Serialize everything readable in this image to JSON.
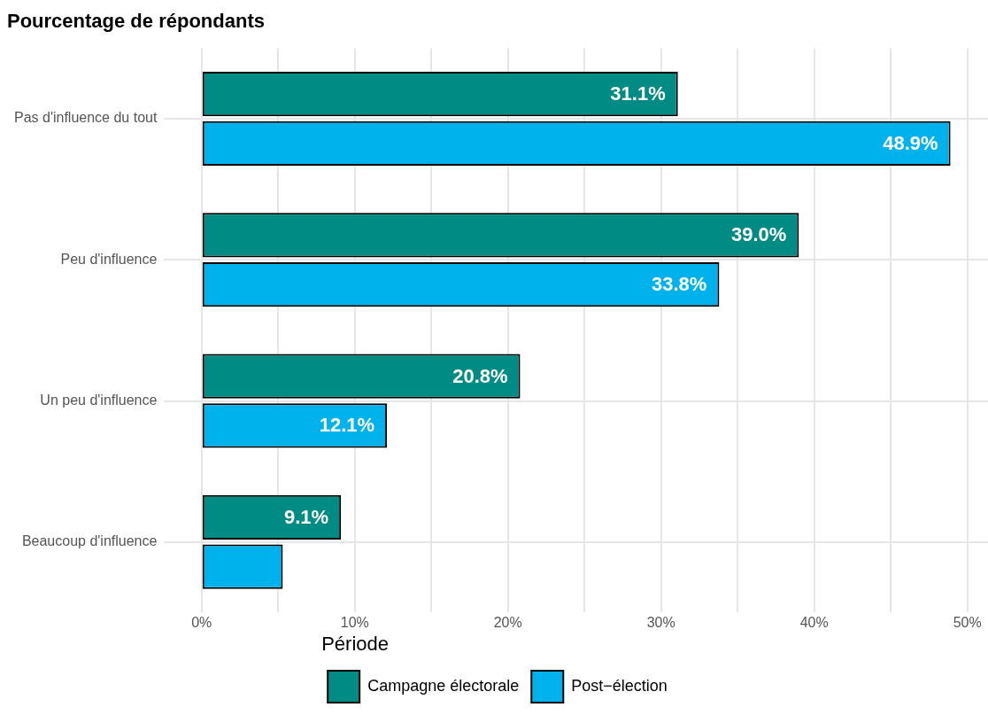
{
  "chart_data": {
    "type": "bar",
    "orientation": "horizontal",
    "title": "Pourcentage de répondants",
    "legend_title": "Période",
    "categories": [
      "Pas d'influence du tout",
      "Peu d'influence",
      "Un peu d'influence",
      "Beaucoup d'influence"
    ],
    "series": [
      {
        "name": "Campagne électorale",
        "color": "#008b84",
        "values": [
          31.1,
          39.0,
          20.8,
          9.1
        ],
        "value_labels": [
          "31.1%",
          "39.0%",
          "20.8%",
          "9.1%"
        ]
      },
      {
        "name": "Post−élection",
        "color": "#00b2ec",
        "values": [
          48.9,
          33.8,
          12.1,
          5.3
        ],
        "value_labels": [
          "48.9%",
          "33.8%",
          "12.1%",
          null
        ]
      }
    ],
    "xlim": [
      -2.45,
      51.35
    ],
    "xticks": [
      {
        "value": 0,
        "label": "0%"
      },
      {
        "value": 5,
        "label": null
      },
      {
        "value": 10,
        "label": "10%"
      },
      {
        "value": 15,
        "label": null
      },
      {
        "value": 20,
        "label": "20%"
      },
      {
        "value": 25,
        "label": null
      },
      {
        "value": 30,
        "label": "30%"
      },
      {
        "value": 35,
        "label": null
      },
      {
        "value": 40,
        "label": "40%"
      },
      {
        "value": 45,
        "label": null
      },
      {
        "value": 50,
        "label": "50%"
      }
    ],
    "grid": true,
    "legend": "bottom"
  }
}
